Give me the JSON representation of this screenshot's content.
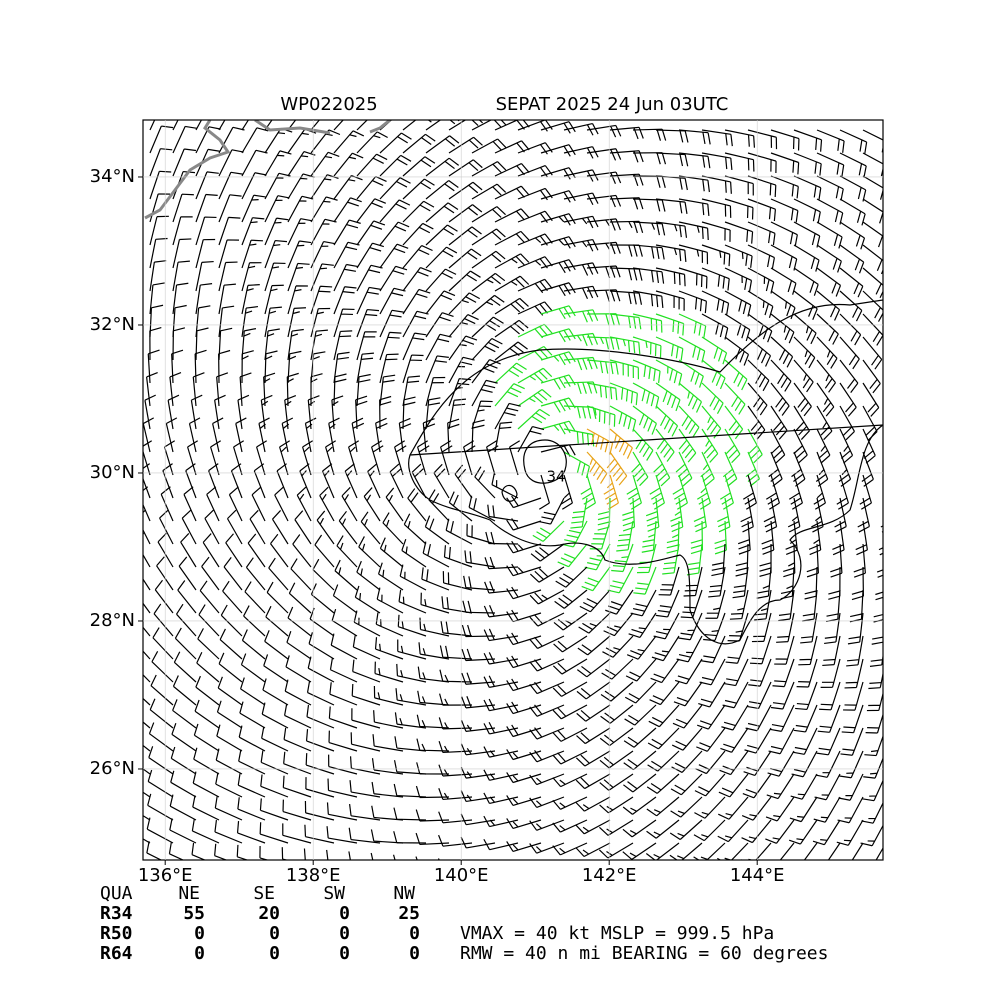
{
  "title": {
    "storm_id": "WP022025",
    "name_time": "SEPAT 2025 24 Jun 03UTC"
  },
  "map": {
    "xlim": [
      135.7,
      145.7
    ],
    "ylim": [
      24.77,
      34.77
    ],
    "xticks": [
      {
        "value": 136,
        "label": "136°E"
      },
      {
        "value": 138,
        "label": "138°E"
      },
      {
        "value": 140,
        "label": "140°E"
      },
      {
        "value": 142,
        "label": "142°E"
      },
      {
        "value": 144,
        "label": "144°E"
      }
    ],
    "yticks": [
      {
        "value": 26,
        "label": "26°N"
      },
      {
        "value": 28,
        "label": "28°N"
      },
      {
        "value": 30,
        "label": "30°N"
      },
      {
        "value": 32,
        "label": "32°N"
      },
      {
        "value": 34,
        "label": "34°N"
      }
    ],
    "contour_label": "34"
  },
  "radii_table": {
    "header": [
      "QUA",
      "NE",
      "SE",
      "SW",
      "NW"
    ],
    "rows": [
      [
        "R34",
        "55",
        "20",
        "0",
        "25"
      ],
      [
        "R50",
        "0",
        "0",
        "0",
        "0"
      ],
      [
        "R64",
        "0",
        "0",
        "0",
        "0"
      ]
    ]
  },
  "stats": {
    "line1": "VMAX =  40 kt MSLP = 999.5 hPa",
    "line2": "RMW =  40 n mi BEARING =  60 degrees"
  }
}
